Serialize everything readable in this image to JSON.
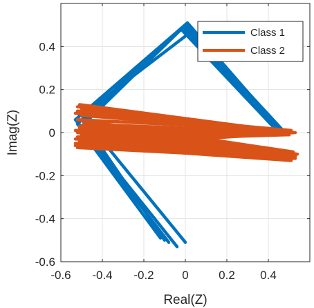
{
  "chart_data": {
    "type": "line",
    "title": "",
    "xlabel": "Real(Z)",
    "ylabel": "Imag(Z)",
    "xlim": [
      -0.6,
      0.6
    ],
    "ylim": [
      -0.6,
      0.6
    ],
    "xticks": [
      -0.6,
      -0.4,
      -0.2,
      0,
      0.2,
      0.4
    ],
    "xtick_labels": [
      "-0.6",
      "-0.4",
      "-0.2",
      "0",
      "0.2",
      "0.4"
    ],
    "yticks": [
      -0.6,
      -0.4,
      -0.2,
      0,
      0.2,
      0.4
    ],
    "ytick_labels": [
      "-0.6",
      "-0.4",
      "-0.2",
      "0",
      "0.2",
      "0.4"
    ],
    "grid": true,
    "legend_position": "top-right",
    "series": [
      {
        "name": "Class 1",
        "color": "#0072BD",
        "lines": [
          [
            [
              -0.12,
              -0.49
            ],
            [
              -0.51,
              0.02
            ],
            [
              -0.02,
              0.48
            ],
            [
              0.45,
              0.0
            ],
            [
              0.5,
              0.0
            ]
          ],
          [
            [
              -0.08,
              -0.51
            ],
            [
              -0.52,
              0.04
            ],
            [
              0.0,
              0.5
            ],
            [
              0.46,
              0.0
            ],
            [
              0.51,
              0.0
            ]
          ],
          [
            [
              -0.04,
              -0.53
            ],
            [
              -0.53,
              0.06
            ],
            [
              0.01,
              0.51
            ],
            [
              0.47,
              0.0
            ],
            [
              0.5,
              0.0
            ]
          ],
          [
            [
              0.0,
              -0.51
            ],
            [
              -0.5,
              0.08
            ],
            [
              0.03,
              0.47
            ],
            [
              0.48,
              0.0
            ],
            [
              0.52,
              0.0
            ]
          ],
          [
            [
              -0.1,
              -0.5
            ],
            [
              -0.49,
              0.05
            ],
            [
              -0.01,
              0.49
            ],
            [
              0.46,
              0.0
            ],
            [
              0.5,
              0.0
            ]
          ]
        ]
      },
      {
        "name": "Class 2",
        "color": "#D95319",
        "lines": [
          [
            [
              -0.51,
              0.12
            ],
            [
              0.5,
              0.0
            ],
            [
              -0.52,
              -0.07
            ],
            [
              0.52,
              -0.12
            ],
            [
              -0.5,
              0.03
            ],
            [
              0.49,
              0.0
            ]
          ],
          [
            [
              -0.52,
              0.1
            ],
            [
              0.51,
              0.01
            ],
            [
              -0.53,
              -0.05
            ],
            [
              0.53,
              -0.11
            ],
            [
              -0.51,
              0.02
            ],
            [
              0.5,
              -0.01
            ]
          ],
          [
            [
              -0.5,
              0.11
            ],
            [
              0.49,
              0.0
            ],
            [
              -0.52,
              -0.06
            ],
            [
              0.51,
              -0.13
            ],
            [
              -0.52,
              0.0
            ],
            [
              0.51,
              0.0
            ]
          ],
          [
            [
              -0.53,
              0.09
            ],
            [
              0.5,
              -0.01
            ],
            [
              -0.51,
              -0.04
            ],
            [
              0.54,
              -0.1
            ],
            [
              -0.49,
              0.04
            ],
            [
              0.52,
              0.0
            ]
          ],
          [
            [
              -0.51,
              0.13
            ],
            [
              0.52,
              0.0
            ],
            [
              -0.53,
              -0.03
            ],
            [
              0.52,
              -0.09
            ],
            [
              -0.52,
              0.06
            ],
            [
              0.5,
              0.01
            ]
          ],
          [
            [
              -0.49,
              0.1
            ],
            [
              0.48,
              0.0
            ],
            [
              -0.52,
              -0.02
            ],
            [
              0.5,
              -0.1
            ],
            [
              -0.5,
              -0.01
            ],
            [
              0.53,
              0.0
            ]
          ],
          [
            [
              -0.52,
              0.12
            ],
            [
              0.51,
              0.0
            ],
            [
              -0.5,
              -0.05
            ],
            [
              0.53,
              -0.12
            ],
            [
              -0.53,
              0.01
            ],
            [
              0.49,
              -0.01
            ]
          ],
          [
            [
              -0.5,
              0.08
            ],
            [
              0.5,
              0.0
            ],
            [
              -0.53,
              -0.06
            ],
            [
              0.52,
              -0.11
            ],
            [
              -0.51,
              0.03
            ],
            [
              0.51,
              0.01
            ]
          ]
        ]
      }
    ]
  }
}
